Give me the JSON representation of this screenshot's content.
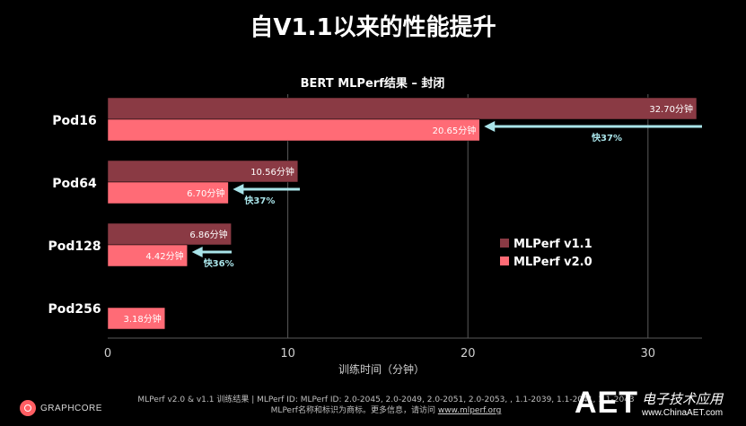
{
  "page": {
    "title": "自V1.1以来的性能提升"
  },
  "chart_data": {
    "type": "bar",
    "orientation": "horizontal",
    "title": "BERT MLPerf结果 – 封闭",
    "xlabel": "训练时间（分钟）",
    "xlim": [
      0,
      33
    ],
    "xticks": [
      0,
      10,
      20,
      30
    ],
    "grid": true,
    "legend_position": "right",
    "categories": [
      "Pod16",
      "Pod64",
      "Pod128",
      "Pod256"
    ],
    "series": [
      {
        "name": "MLPerf v1.1",
        "color": "#8a3a44",
        "values": [
          32.7,
          10.56,
          6.86,
          null
        ],
        "labels": [
          "32.70分钟",
          "10.56分钟",
          "6.86分钟",
          ""
        ]
      },
      {
        "name": "MLPerf v2.0",
        "color": "#ff6b76",
        "values": [
          20.65,
          6.7,
          4.42,
          3.18
        ],
        "labels": [
          "20.65分钟",
          "6.70分钟",
          "4.42分钟",
          "3.18分钟"
        ]
      }
    ],
    "annotations": [
      {
        "category": "Pod16",
        "text": "快37%"
      },
      {
        "category": "Pod64",
        "text": "快37%"
      },
      {
        "category": "Pod128",
        "text": "快36%"
      }
    ],
    "arrow_color": "#a9e4e9"
  },
  "footer": {
    "line1": "MLPerf v2.0 & v1.1 训练结果 | MLPerf ID: MLPerf ID: 2.0-2045, 2.0-2049, 2.0-2051, 2.0-2053, , 1.1-2039, 1.1-2041, 1.1-2043",
    "line2_prefix": "MLPerf名称和标识为商标。更多信息，请访问 ",
    "line2_link": "www.mlperf.org"
  },
  "brand": {
    "name": "GRAPHCORE"
  },
  "watermark": {
    "logo_text": "AET",
    "cn_name": "电子技术应用",
    "url": "www.ChinaAET.com"
  }
}
